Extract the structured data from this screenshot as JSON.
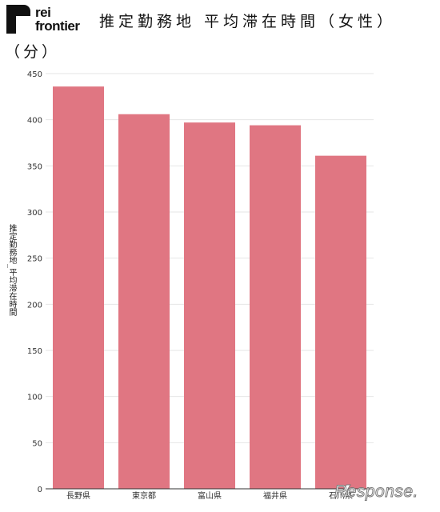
{
  "header": {
    "logo_text_line1": "rei",
    "logo_text_line2": "frontier",
    "title": "推定勤務地 平均滞在時間（女性）",
    "unit": "（分）"
  },
  "watermark": {
    "text": "Response."
  },
  "colors": {
    "bar": "#e07682",
    "grid": "#e6e6e6",
    "axis": "#333333"
  },
  "chart_data": {
    "type": "bar",
    "categories": [
      "長野県",
      "東京都",
      "富山県",
      "福井県",
      "石川県"
    ],
    "values": [
      436,
      406,
      397,
      394,
      361
    ],
    "ylabel": "推定勤務地_平均滞在時間",
    "ylim": [
      0,
      450
    ],
    "yticks": [
      0,
      50,
      100,
      150,
      200,
      250,
      300,
      350,
      400,
      450
    ],
    "grid": true
  }
}
